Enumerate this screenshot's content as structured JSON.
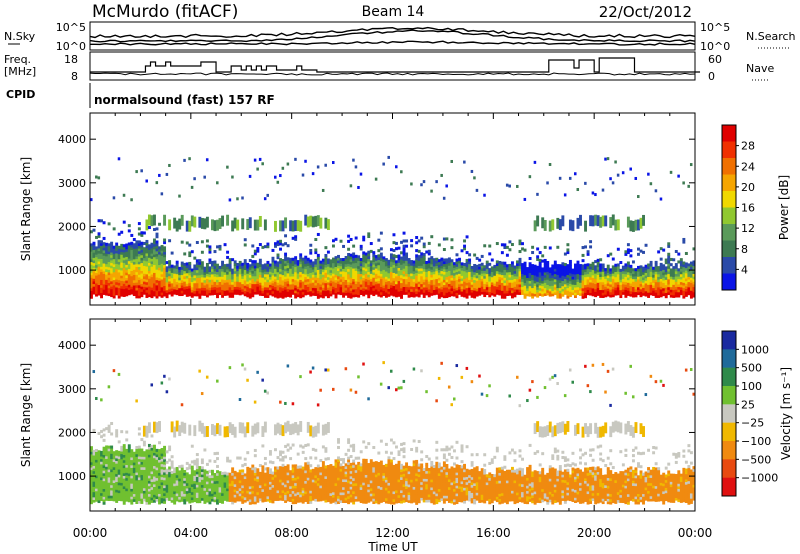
{
  "header": {
    "station": "McMurdo (fitACF)",
    "beam": "Beam 14",
    "date": "22/Oct/2012"
  },
  "top_panels": {
    "left_labels": [
      "N.Sky",
      "Freq.",
      "[MHz]",
      "CPID"
    ],
    "right_labels": [
      "N.Search",
      "Nave"
    ],
    "nsky_ticks": [
      "10^5",
      "10^0"
    ],
    "nsearch_ticks": [
      "10^5",
      "10^0"
    ],
    "freq_ticks": [
      "18",
      "8"
    ],
    "nave_ticks": [
      "60",
      "0"
    ],
    "cpid_text": "normalsound (fast) 157 RF"
  },
  "colors": {
    "power_scale": [
      "#0a14e6",
      "#2a4aa8",
      "#3d7a52",
      "#5a9a5a",
      "#90c830",
      "#f0d800",
      "#f5a500",
      "#f07000",
      "#f03000",
      "#e00000"
    ],
    "velocity_scale": [
      "#1a2aa0",
      "#1f6a9a",
      "#2f8a4a",
      "#70c030",
      "#c8c8c0",
      "#f0b800",
      "#f08a10",
      "#e84a10",
      "#e01010"
    ]
  },
  "chart_data": [
    {
      "type": "heatmap",
      "panel": "power",
      "title": "",
      "ylabel": "Slant Range [km]",
      "xlabel": "",
      "ylim": [
        200,
        4600
      ],
      "xlim": [
        0,
        24
      ],
      "y_ticks": [
        "1000",
        "2000",
        "3000",
        "4000"
      ],
      "x_ticks": [
        "00:00",
        "04:00",
        "08:00",
        "12:00",
        "16:00",
        "20:00",
        "00:00"
      ],
      "colorbar": {
        "label": "Power [dB]",
        "ticks": [
          "28",
          "24",
          "20",
          "16",
          "12",
          "8",
          "4"
        ],
        "range": [
          0,
          30
        ]
      },
      "regions": [
        {
          "description": "strong echo band",
          "t_start": 0.5,
          "t_end": 23.5,
          "range_km": [
            500,
            1100
          ],
          "value_db": 26
        },
        {
          "description": "weak upper band",
          "t_start": 4.5,
          "t_end": 9.5,
          "range_km": [
            2000,
            2300
          ],
          "value_db": 10
        }
      ]
    },
    {
      "type": "heatmap",
      "panel": "velocity",
      "title": "",
      "ylabel": "Slant Range [km]",
      "xlabel": "Time UT",
      "ylim": [
        200,
        4600
      ],
      "xlim": [
        0,
        24
      ],
      "y_ticks": [
        "1000",
        "2000",
        "3000",
        "4000"
      ],
      "x_ticks": [
        "00:00",
        "04:00",
        "08:00",
        "12:00",
        "16:00",
        "20:00",
        "00:00"
      ],
      "colorbar": {
        "label": "Velocity [m s⁻¹]",
        "ticks": [
          "1000",
          "500",
          "100",
          "25",
          "−25",
          "−100",
          "−500",
          "−1000"
        ],
        "range": [
          -1000,
          1000
        ]
      },
      "regions": [
        {
          "description": "positive velocity echoes",
          "t_start": 0.3,
          "t_end": 5.5,
          "range_km": [
            500,
            1500
          ],
          "value_ms": 150
        },
        {
          "description": "negative velocity echoes",
          "t_start": 6.0,
          "t_end": 23.5,
          "range_km": [
            500,
            1400
          ],
          "value_ms": -150
        }
      ]
    }
  ]
}
